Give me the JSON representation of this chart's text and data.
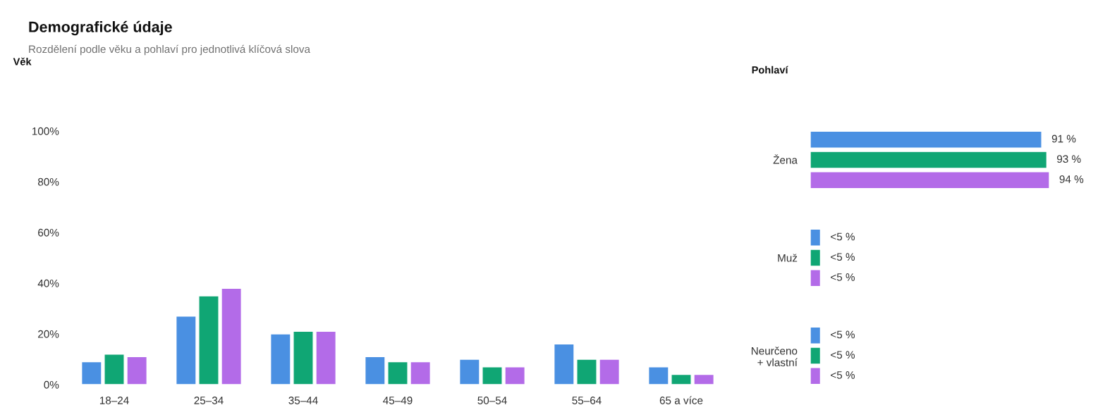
{
  "chart_data": [
    {
      "type": "other",
      "title": "Demografické údaje",
      "subtitle": "Rozdělení podle věku a pohlaví pro jednotlivá klíčová slova"
    },
    {
      "type": "bar",
      "title": "Věk",
      "categories": [
        "18–24",
        "25–34",
        "35–44",
        "45–49",
        "50–54",
        "55–64",
        "65 a více"
      ],
      "series": [
        {
          "color": "#4a90e2",
          "values": [
            9,
            27,
            20,
            11,
            10,
            16,
            7
          ]
        },
        {
          "color": "#10a674",
          "values": [
            12,
            35,
            21,
            9,
            7,
            10,
            4
          ]
        },
        {
          "color": "#b36be8",
          "values": [
            11,
            38,
            21,
            9,
            7,
            10,
            4
          ]
        }
      ],
      "ylim": [
        0,
        100
      ],
      "yticks": [
        {
          "value": 0,
          "label": "0%"
        },
        {
          "value": 20,
          "label": "20%"
        },
        {
          "value": 40,
          "label": "40%"
        },
        {
          "value": 60,
          "label": "60%"
        },
        {
          "value": 80,
          "label": "80%"
        },
        {
          "value": 100,
          "label": "100%"
        }
      ]
    },
    {
      "type": "bar",
      "title": "Pohlaví",
      "orientation": "horizontal",
      "categories": [
        "Žena",
        "Muž",
        "Neurčeno\n+ vlastní"
      ],
      "series": [
        {
          "color": "#4a90e2",
          "values": [
            91,
            4,
            4
          ],
          "value_labels": [
            "91 %",
            "<5 %",
            "<5 %"
          ]
        },
        {
          "color": "#10a674",
          "values": [
            93,
            4,
            4
          ],
          "value_labels": [
            "93 %",
            "<5 %",
            "<5 %"
          ]
        },
        {
          "color": "#b36be8",
          "values": [
            94,
            4,
            4
          ],
          "value_labels": [
            "94 %",
            "<5 %",
            "<5 %"
          ]
        }
      ],
      "tick_labels": "y"
    }
  ]
}
